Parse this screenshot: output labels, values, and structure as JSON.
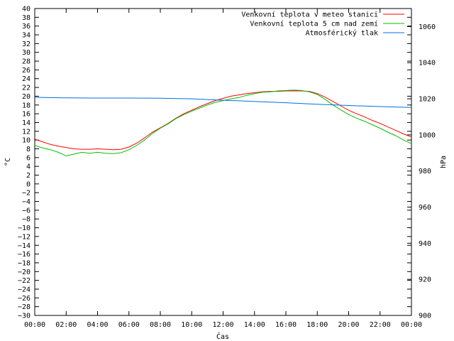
{
  "chart_data": {
    "type": "line",
    "xlabel": "Čas",
    "ylabel": "°C",
    "y2label": "hPa",
    "xlim": [
      0,
      24
    ],
    "ylim": [
      -30,
      40
    ],
    "y2lim": [
      900,
      1070
    ],
    "x_ticks": [
      0,
      2,
      4,
      6,
      8,
      10,
      12,
      14,
      16,
      18,
      20,
      22,
      24
    ],
    "x_tick_labels": [
      "00:00",
      "02:00",
      "04:00",
      "06:00",
      "08:00",
      "10:00",
      "12:00",
      "14:00",
      "16:00",
      "18:00",
      "20:00",
      "22:00",
      "00:00"
    ],
    "y_ticks": [
      40,
      38,
      36,
      34,
      32,
      30,
      28,
      26,
      24,
      22,
      20,
      18,
      16,
      14,
      12,
      10,
      8,
      6,
      4,
      2,
      0,
      -2,
      -4,
      -6,
      -8,
      -10,
      -12,
      -14,
      -16,
      -18,
      -20,
      -22,
      -24,
      -26,
      -28,
      -30
    ],
    "y2_ticks": [
      900,
      920,
      940,
      960,
      980,
      1000,
      1020,
      1040,
      1060
    ],
    "legend_position": "top-right",
    "grid": false,
    "series": [
      {
        "name": "Venkovní teplota v meteo stanici",
        "color": "#ff0000",
        "axis": "left",
        "x": [
          0,
          0.5,
          1,
          1.5,
          2,
          2.5,
          3,
          3.5,
          4,
          4.5,
          5,
          5.5,
          6,
          6.5,
          7,
          7.5,
          8,
          8.5,
          9,
          9.5,
          10,
          10.5,
          11,
          11.5,
          12,
          12.5,
          13,
          13.5,
          14,
          14.5,
          15,
          15.5,
          16,
          16.5,
          17,
          17.5,
          18,
          18.5,
          19,
          19.5,
          20,
          20.5,
          21,
          21.5,
          22,
          22.5,
          23,
          23.5,
          24
        ],
        "values": [
          10.2,
          9.6,
          9.0,
          8.6,
          8.3,
          8.0,
          7.9,
          7.9,
          8.0,
          7.9,
          7.8,
          7.9,
          8.4,
          9.3,
          10.5,
          11.8,
          12.8,
          13.8,
          15.0,
          16.0,
          16.8,
          17.6,
          18.3,
          19.0,
          19.5,
          20.0,
          20.3,
          20.6,
          20.8,
          21.0,
          21.1,
          21.1,
          21.2,
          21.2,
          21.2,
          21.1,
          20.6,
          19.8,
          18.8,
          17.8,
          16.8,
          16.0,
          15.3,
          14.5,
          13.8,
          13.0,
          12.2,
          11.4,
          10.7
        ]
      },
      {
        "name": "Venkovní teplota 5 cm nad zemí",
        "color": "#00c000",
        "axis": "left",
        "x": [
          0,
          0.5,
          1,
          1.5,
          2,
          2.5,
          3,
          3.5,
          4,
          4.5,
          5,
          5.5,
          6,
          6.5,
          7,
          7.5,
          8,
          8.5,
          9,
          9.5,
          10,
          10.5,
          11,
          11.5,
          12,
          12.5,
          13,
          13.5,
          14,
          14.5,
          15,
          15.5,
          16,
          16.5,
          17,
          17.5,
          18,
          18.5,
          19,
          19.5,
          20,
          20.5,
          21,
          21.5,
          22,
          22.5,
          23,
          23.5,
          24
        ],
        "values": [
          8.8,
          8.2,
          7.8,
          7.2,
          6.4,
          6.8,
          7.2,
          7.0,
          7.2,
          7.0,
          6.9,
          7.1,
          7.8,
          8.8,
          10.0,
          11.5,
          12.7,
          13.7,
          14.9,
          15.8,
          16.6,
          17.3,
          18.0,
          18.6,
          19.0,
          19.4,
          19.7,
          20.2,
          20.6,
          20.9,
          21.0,
          21.2,
          21.3,
          21.4,
          21.3,
          21.0,
          20.4,
          19.3,
          18.0,
          16.9,
          15.8,
          15.0,
          14.3,
          13.5,
          12.7,
          11.8,
          11.0,
          10.0,
          9.2
        ]
      },
      {
        "name": "Atmosférický tlak",
        "color": "#0070e0",
        "axis": "right",
        "x": [
          0,
          2,
          4,
          6,
          8,
          10,
          12,
          13,
          14,
          16,
          18,
          20,
          22,
          24
        ],
        "values": [
          1020.8,
          1020.5,
          1020.4,
          1020.4,
          1020.3,
          1020.0,
          1019.2,
          1018.9,
          1018.5,
          1017.8,
          1017.0,
          1016.3,
          1015.7,
          1015.2
        ]
      }
    ]
  }
}
